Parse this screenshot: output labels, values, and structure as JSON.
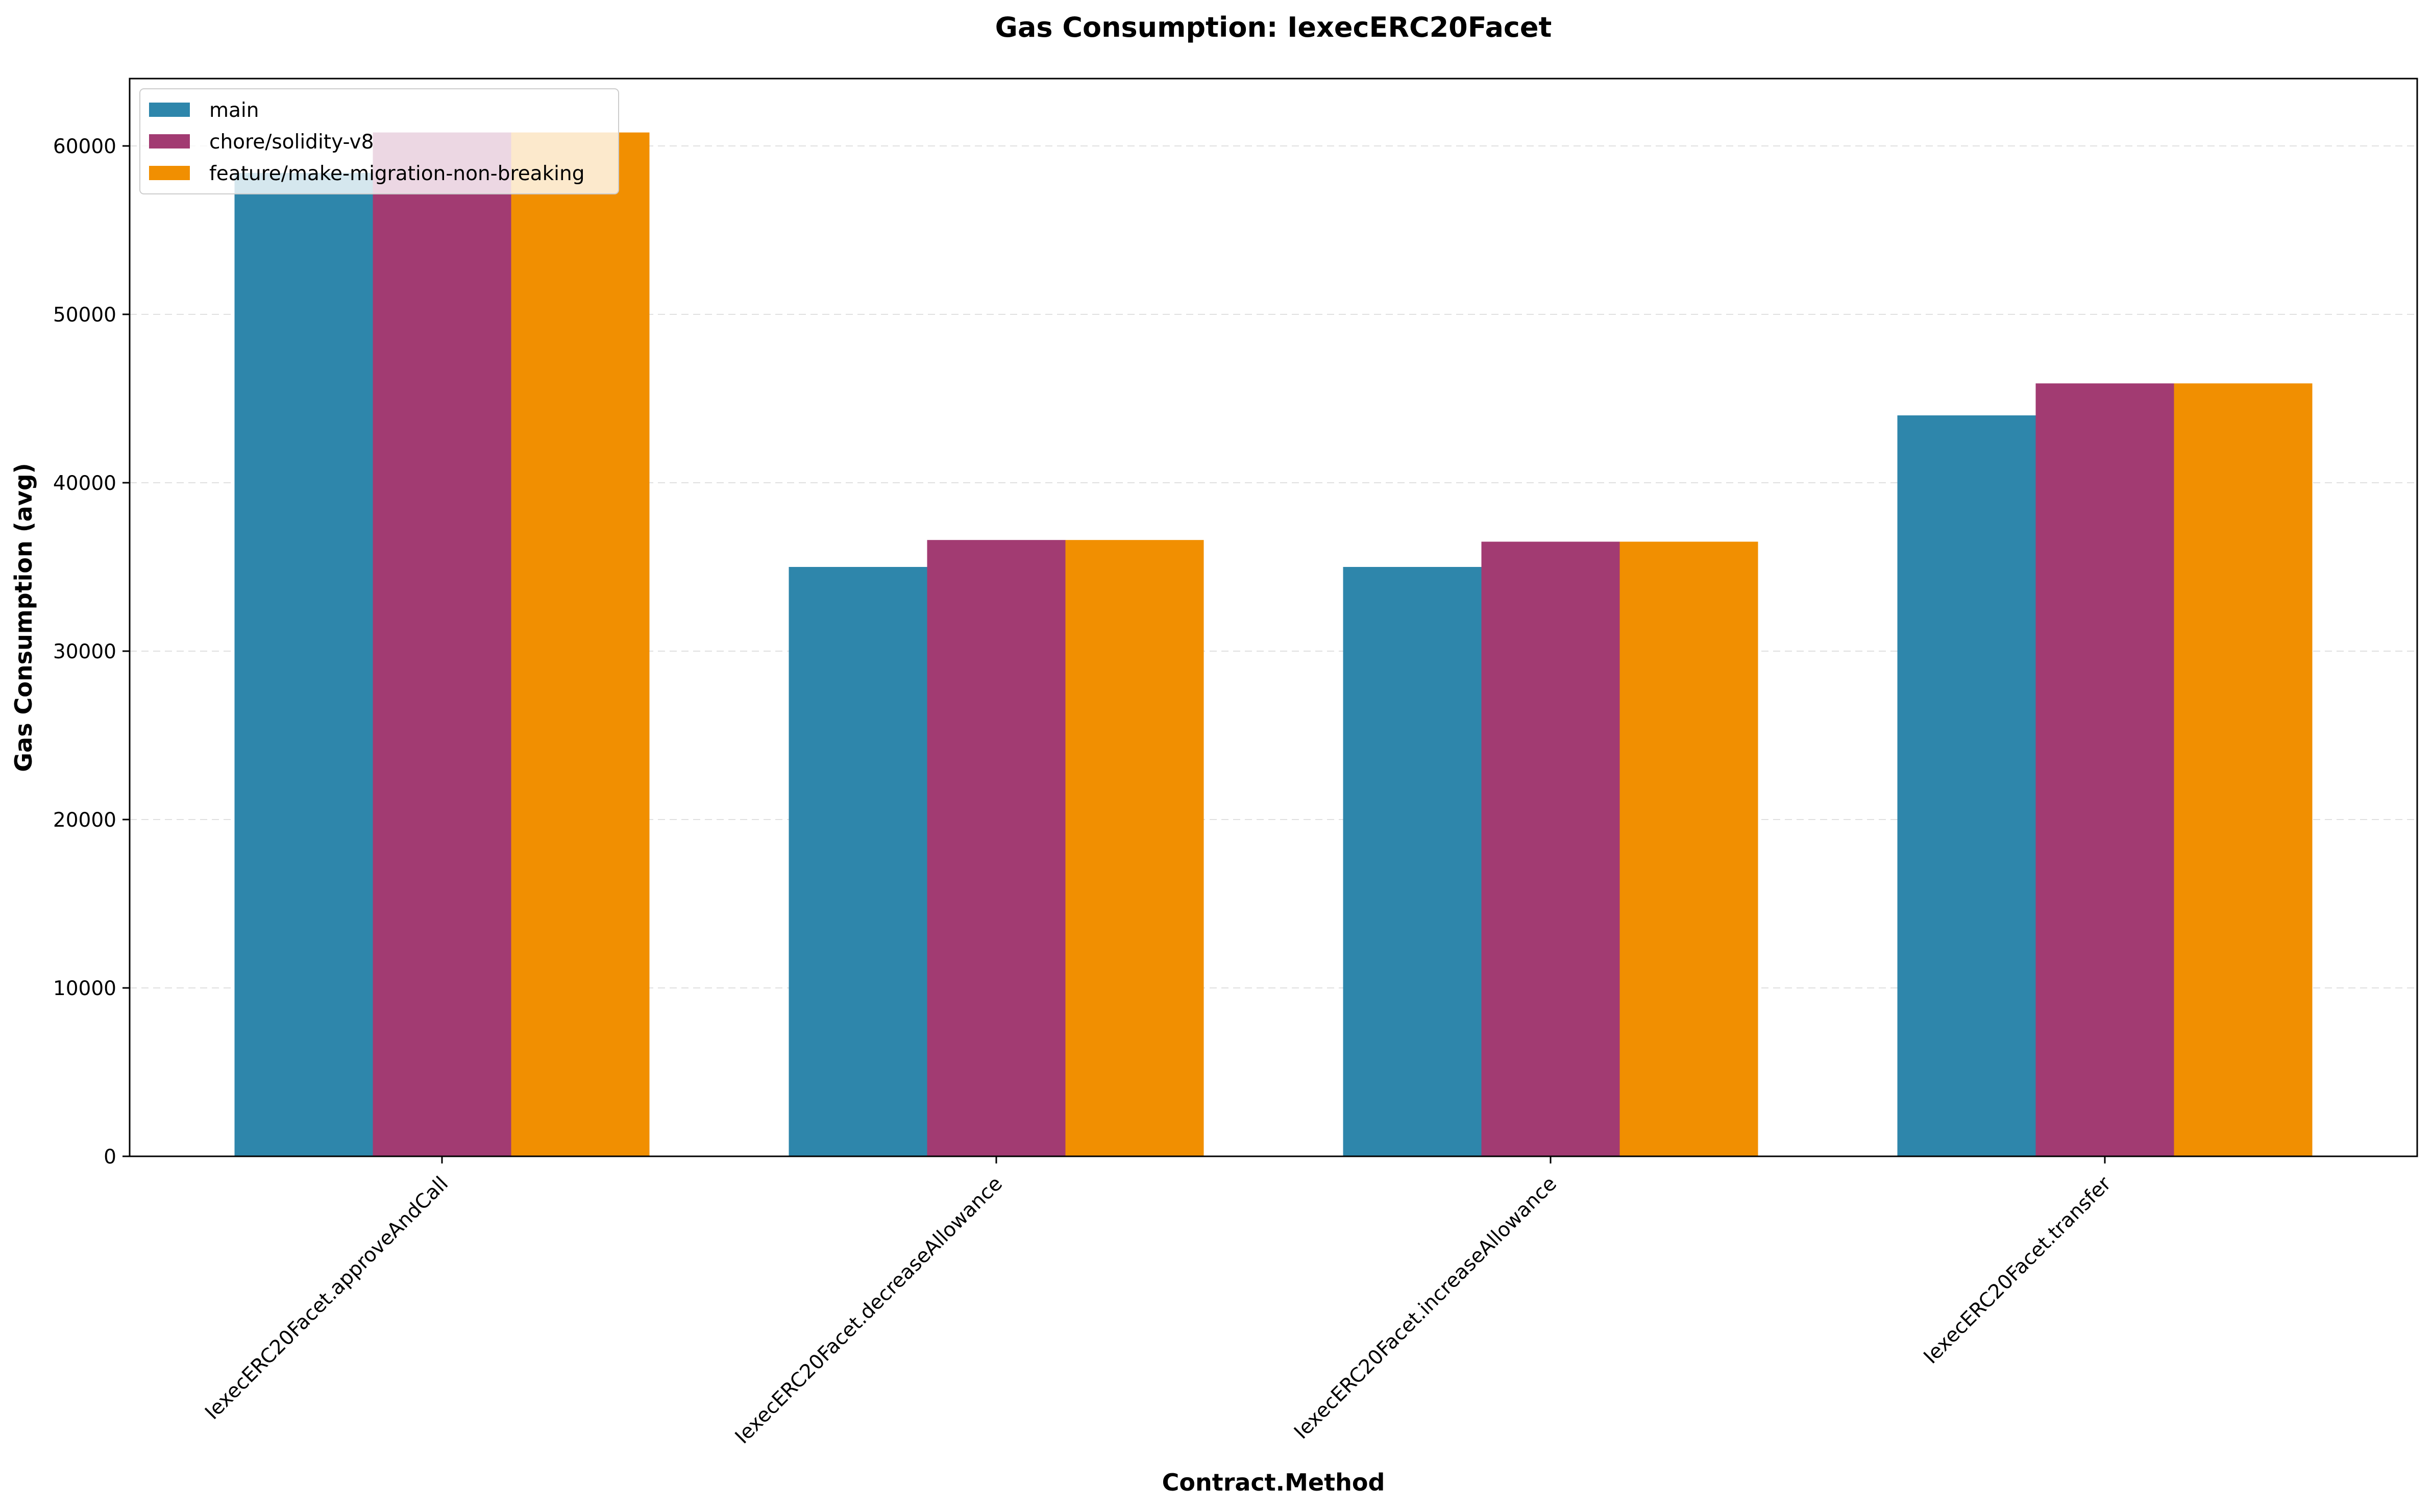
{
  "chart_data": {
    "type": "bar",
    "title": "Gas Consumption: IexecERC20Facet",
    "xlabel": "Contract.Method",
    "ylabel": "Gas Consumption (avg)",
    "categories": [
      "IexecERC20Facet.approveAndCall",
      "IexecERC20Facet.decreaseAllowance",
      "IexecERC20Facet.increaseAllowance",
      "IexecERC20Facet.transfer"
    ],
    "series": [
      {
        "name": "main",
        "color": "#2e86ab",
        "values": [
          58400,
          35000,
          35000,
          44000
        ]
      },
      {
        "name": "chore/solidity-v8",
        "color": "#a23b72",
        "values": [
          60800,
          36600,
          36500,
          45900
        ]
      },
      {
        "name": "feature/make-migration-non-breaking",
        "color": "#f18f01",
        "values": [
          60800,
          36600,
          36500,
          45900
        ]
      }
    ],
    "ylim": [
      0,
      64000
    ],
    "yticks": [
      0,
      10000,
      20000,
      30000,
      40000,
      50000,
      60000
    ],
    "grid": "y-dashed",
    "legend_position": "top-left"
  }
}
